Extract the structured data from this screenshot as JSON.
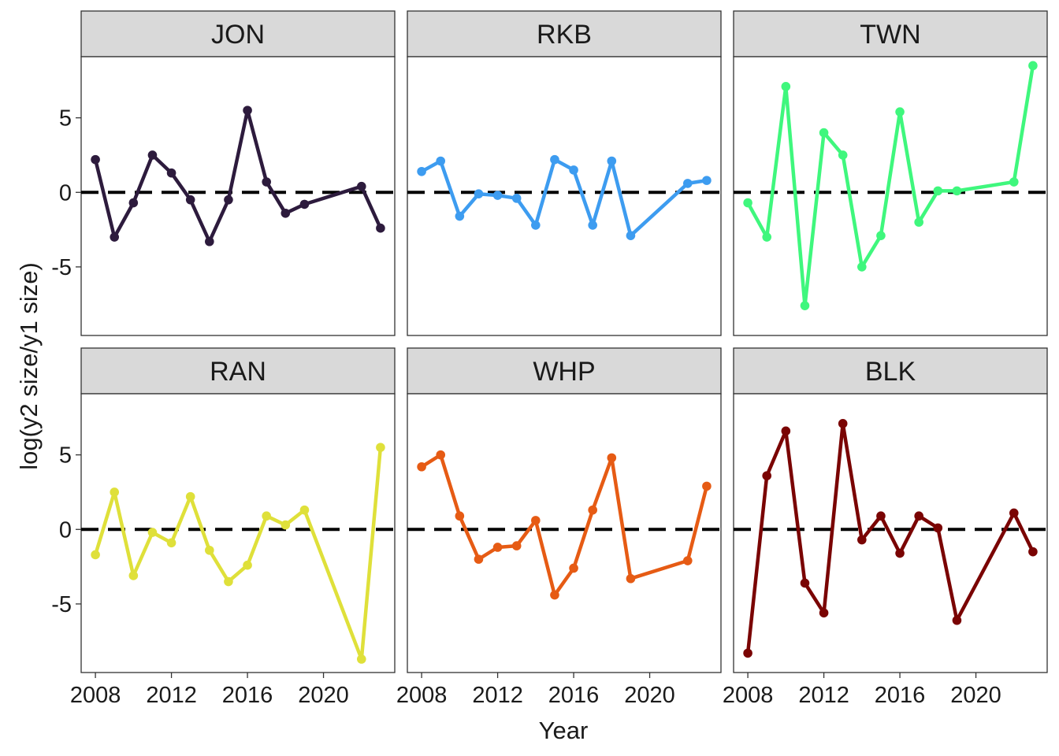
{
  "chart_data": {
    "type": "line",
    "xlabel": "Year",
    "ylabel": "log(y2 size/y1 size)",
    "x_ticks": [
      2008,
      2012,
      2016,
      2020
    ],
    "y_ticks": [
      -5,
      0,
      5
    ],
    "xlim": [
      2007.25,
      2023.75
    ],
    "ylim": [
      -9.6,
      9.1
    ],
    "reference_line": 0,
    "panels": [
      {
        "name": "JON",
        "color": "#2d1b3d",
        "x": [
          2008,
          2009,
          2010,
          2011,
          2012,
          2013,
          2014,
          2015,
          2016,
          2017,
          2018,
          2019,
          2022,
          2023
        ],
        "y": [
          2.2,
          -3.0,
          -0.7,
          2.5,
          1.3,
          -0.5,
          -3.3,
          -0.5,
          5.5,
          0.7,
          -1.4,
          -0.8,
          0.4,
          -2.4
        ]
      },
      {
        "name": "RKB",
        "color": "#3d9cf0",
        "x": [
          2008,
          2009,
          2010,
          2011,
          2012,
          2013,
          2014,
          2015,
          2016,
          2017,
          2018,
          2019,
          2022,
          2023
        ],
        "y": [
          1.4,
          2.1,
          -1.6,
          -0.1,
          -0.2,
          -0.4,
          -2.2,
          2.2,
          1.5,
          -2.2,
          2.1,
          -2.9,
          0.6,
          0.8
        ]
      },
      {
        "name": "TWN",
        "color": "#3ff77d",
        "x": [
          2008,
          2009,
          2010,
          2011,
          2012,
          2013,
          2014,
          2015,
          2016,
          2017,
          2018,
          2019,
          2022,
          2023
        ],
        "y": [
          -0.7,
          -3.0,
          7.1,
          -7.6,
          4.0,
          2.5,
          -5.0,
          -2.9,
          5.4,
          -2.0,
          0.1,
          0.1,
          0.7,
          8.5
        ]
      },
      {
        "name": "RAN",
        "color": "#dfe03a",
        "x": [
          2008,
          2009,
          2010,
          2011,
          2012,
          2013,
          2014,
          2015,
          2016,
          2017,
          2018,
          2019,
          2022,
          2023
        ],
        "y": [
          -1.7,
          2.5,
          -3.1,
          -0.2,
          -0.9,
          2.2,
          -1.4,
          -3.5,
          -2.4,
          0.9,
          0.3,
          1.3,
          -8.7,
          5.5
        ]
      },
      {
        "name": "WHP",
        "color": "#e65b14",
        "x": [
          2008,
          2009,
          2010,
          2011,
          2012,
          2013,
          2014,
          2015,
          2016,
          2017,
          2018,
          2019,
          2022,
          2023
        ],
        "y": [
          4.2,
          5.0,
          0.9,
          -2.0,
          -1.2,
          -1.1,
          0.6,
          -4.4,
          -2.6,
          1.3,
          4.8,
          -3.3,
          -2.1,
          2.9
        ]
      },
      {
        "name": "BLK",
        "color": "#7a0403",
        "x": [
          2008,
          2009,
          2010,
          2011,
          2012,
          2013,
          2014,
          2015,
          2016,
          2017,
          2018,
          2019,
          2022,
          2023
        ],
        "y": [
          -8.3,
          3.6,
          6.6,
          -3.6,
          -5.6,
          7.1,
          -0.7,
          0.9,
          -1.6,
          0.9,
          0.1,
          -6.1,
          1.1,
          -1.5
        ]
      }
    ]
  }
}
